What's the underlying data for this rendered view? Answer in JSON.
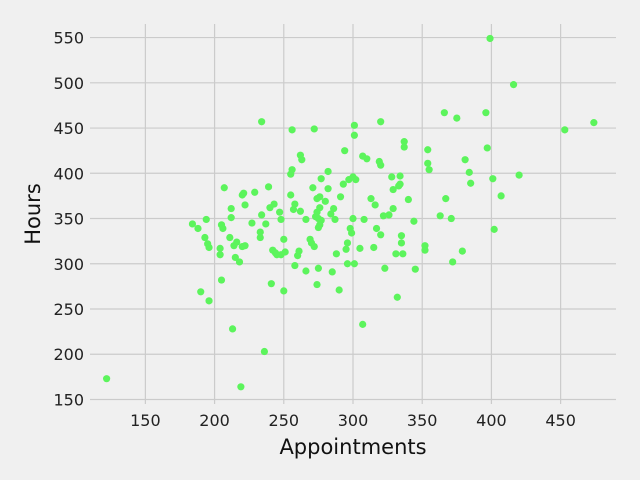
{
  "chart_data": {
    "type": "scatter",
    "title": "",
    "xlabel": "Appointments",
    "ylabel": "Hours",
    "xlim": [
      110,
      490
    ],
    "ylim": [
      145,
      565
    ],
    "xticks": [
      150,
      200,
      250,
      300,
      350,
      400,
      450
    ],
    "yticks": [
      150,
      200,
      250,
      300,
      350,
      400,
      450,
      500,
      550
    ],
    "grid": true,
    "marker_color": "#5cf45c",
    "background": "#f0f0f0",
    "points": [
      [
        122,
        173
      ],
      [
        184,
        344
      ],
      [
        188,
        339
      ],
      [
        190,
        269
      ],
      [
        193,
        329
      ],
      [
        194,
        349
      ],
      [
        195,
        322
      ],
      [
        196,
        259
      ],
      [
        196,
        318
      ],
      [
        204,
        317
      ],
      [
        204,
        310
      ],
      [
        205,
        282
      ],
      [
        205,
        343
      ],
      [
        206,
        339
      ],
      [
        207,
        384
      ],
      [
        211,
        329
      ],
      [
        212,
        361
      ],
      [
        212,
        351
      ],
      [
        213,
        228
      ],
      [
        214,
        320
      ],
      [
        215,
        307
      ],
      [
        216,
        324
      ],
      [
        218,
        302
      ],
      [
        219,
        164
      ],
      [
        220,
        376
      ],
      [
        220,
        319
      ],
      [
        221,
        378
      ],
      [
        222,
        320
      ],
      [
        222,
        365
      ],
      [
        227,
        345
      ],
      [
        229,
        379
      ],
      [
        233,
        335
      ],
      [
        233,
        329
      ],
      [
        234,
        354
      ],
      [
        234,
        457
      ],
      [
        236,
        203
      ],
      [
        237,
        344
      ],
      [
        239,
        385
      ],
      [
        240,
        362
      ],
      [
        241,
        278
      ],
      [
        242,
        315
      ],
      [
        243,
        366
      ],
      [
        244,
        312
      ],
      [
        245,
        310
      ],
      [
        247,
        357
      ],
      [
        248,
        310
      ],
      [
        248,
        349
      ],
      [
        250,
        270
      ],
      [
        250,
        327
      ],
      [
        251,
        313
      ],
      [
        255,
        376
      ],
      [
        255,
        399
      ],
      [
        256,
        448
      ],
      [
        256,
        404
      ],
      [
        257,
        360
      ],
      [
        258,
        298
      ],
      [
        258,
        366
      ],
      [
        260,
        309
      ],
      [
        261,
        314
      ],
      [
        262,
        358
      ],
      [
        262,
        420
      ],
      [
        263,
        415
      ],
      [
        266,
        292
      ],
      [
        266,
        349
      ],
      [
        269,
        327
      ],
      [
        270,
        323
      ],
      [
        271,
        384
      ],
      [
        272,
        449
      ],
      [
        272,
        319
      ],
      [
        273,
        352
      ],
      [
        274,
        372
      ],
      [
        274,
        357
      ],
      [
        274,
        277
      ],
      [
        275,
        295
      ],
      [
        275,
        350
      ],
      [
        275,
        340
      ],
      [
        276,
        374
      ],
      [
        276,
        362
      ],
      [
        276,
        343
      ],
      [
        277,
        394
      ],
      [
        277,
        348
      ],
      [
        280,
        369
      ],
      [
        282,
        383
      ],
      [
        282,
        402
      ],
      [
        284,
        355
      ],
      [
        285,
        291
      ],
      [
        286,
        361
      ],
      [
        287,
        349
      ],
      [
        288,
        311
      ],
      [
        290,
        271
      ],
      [
        291,
        374
      ],
      [
        293,
        388
      ],
      [
        294,
        425
      ],
      [
        295,
        316
      ],
      [
        296,
        300
      ],
      [
        296,
        323
      ],
      [
        297,
        393
      ],
      [
        298,
        339
      ],
      [
        299,
        334
      ],
      [
        300,
        396
      ],
      [
        300,
        350
      ],
      [
        301,
        300
      ],
      [
        301,
        453
      ],
      [
        301,
        442
      ],
      [
        302,
        393
      ],
      [
        305,
        317
      ],
      [
        307,
        233
      ],
      [
        307,
        419
      ],
      [
        308,
        349
      ],
      [
        310,
        416
      ],
      [
        313,
        372
      ],
      [
        315,
        318
      ],
      [
        316,
        365
      ],
      [
        317,
        339
      ],
      [
        319,
        413
      ],
      [
        320,
        332
      ],
      [
        320,
        409
      ],
      [
        320,
        457
      ],
      [
        322,
        353
      ],
      [
        323,
        295
      ],
      [
        326,
        354
      ],
      [
        328,
        396
      ],
      [
        329,
        382
      ],
      [
        329,
        361
      ],
      [
        331,
        311
      ],
      [
        332,
        263
      ],
      [
        333,
        386
      ],
      [
        334,
        388
      ],
      [
        334,
        397
      ],
      [
        335,
        331
      ],
      [
        335,
        323
      ],
      [
        336,
        311
      ],
      [
        337,
        435
      ],
      [
        337,
        429
      ],
      [
        340,
        371
      ],
      [
        344,
        347
      ],
      [
        345,
        294
      ],
      [
        352,
        320
      ],
      [
        352,
        315
      ],
      [
        354,
        411
      ],
      [
        354,
        426
      ],
      [
        355,
        404
      ],
      [
        363,
        353
      ],
      [
        366,
        467
      ],
      [
        367,
        372
      ],
      [
        371,
        350
      ],
      [
        372,
        302
      ],
      [
        375,
        461
      ],
      [
        379,
        314
      ],
      [
        381,
        415
      ],
      [
        384,
        401
      ],
      [
        385,
        389
      ],
      [
        396,
        467
      ],
      [
        397,
        428
      ],
      [
        399,
        549
      ],
      [
        401,
        394
      ],
      [
        402,
        338
      ],
      [
        407,
        375
      ],
      [
        416,
        498
      ],
      [
        420,
        398
      ],
      [
        453,
        448
      ],
      [
        474,
        456
      ]
    ]
  }
}
